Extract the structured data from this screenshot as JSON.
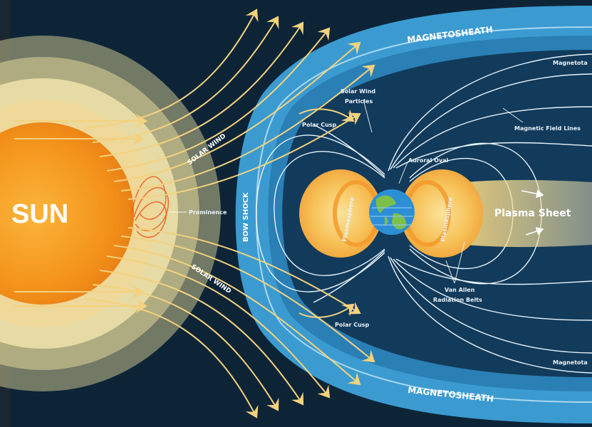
{
  "labels": {
    "sun": "SUN",
    "solar_wind_top": "SOLAR WIND",
    "solar_wind_bottom": "SOLAR WIND",
    "prominence": "Prominence",
    "bow_shock": "BOW SHOCK",
    "magnetosheath_top": "MAGNETOSHEATH",
    "magnetosheath_bottom": "MAGNETOSHEATH",
    "magnetotail_top": "Magnetota",
    "magnetotail_bottom": "Magnetota",
    "solar_wind_particles_1": "Solar Wind",
    "solar_wind_particles_2": "Particles",
    "polar_cusp_top": "Polar Cusp",
    "polar_cusp_bottom": "Polar Cusp",
    "magnetic_field_lines": "Magnetic Field Lines",
    "auroral_oval": "Auroral Oval",
    "plasmasphere_left": "Plasmasphere",
    "plasmasphere_right": "Plasmasphere",
    "plasma_sheet": "Plasma Sheet",
    "van_allen_1": "Van Allen",
    "van_allen_2": "Radiation Belts"
  },
  "colors": {
    "space": "#0d2437",
    "sun_core": "#f39a1a",
    "solar_wind": "#f4d27e",
    "sheath": "#2f8ec3",
    "field_lines": "#e8f4fb",
    "plasma": "#f6c24a"
  },
  "icons": {
    "earth": "earth-globe-icon",
    "arrow": "arrow-head-icon"
  }
}
